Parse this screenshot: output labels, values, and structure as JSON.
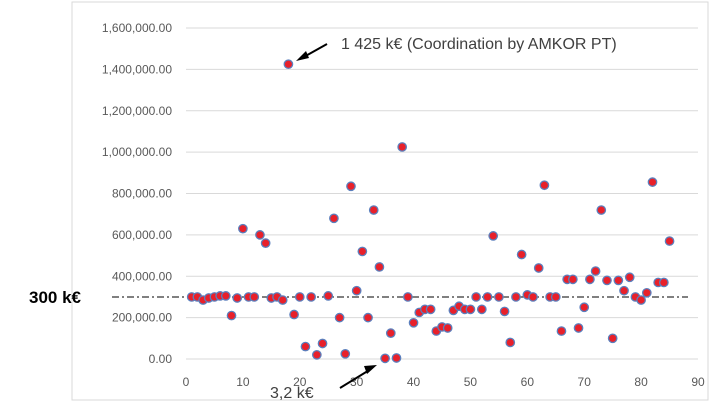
{
  "chart_data": {
    "type": "scatter",
    "title": "",
    "xlabel": "",
    "ylabel": "",
    "xlim": [
      0,
      90
    ],
    "ylim": [
      0,
      1600000
    ],
    "grid": "horizontal",
    "x_ticks": [
      "0",
      "10",
      "20",
      "30",
      "40",
      "50",
      "60",
      "70",
      "80",
      "90"
    ],
    "y_ticks": [
      "0.00",
      "200,000.00",
      "400,000.00",
      "600,000.00",
      "800,000.00",
      "1,000,000.00",
      "1,200,000.00",
      "1,400,000.00",
      "1,600,000.00"
    ],
    "colors": {
      "marker_fill": "#e8202a",
      "marker_edge": "#5b7fbd",
      "grid": "#d9d9d9",
      "reference_line": "#000000"
    },
    "reference_line": {
      "y": 300000,
      "label": "300 k€"
    },
    "annotations": [
      {
        "text": "1 425 k€ (Coordination by AMKOR PT)",
        "x": 18,
        "y": 1425000
      },
      {
        "text": "3,2 k€",
        "x": 35,
        "y": 3200
      }
    ],
    "points": [
      [
        1,
        300000
      ],
      [
        2,
        300000
      ],
      [
        3,
        285000
      ],
      [
        4,
        295000
      ],
      [
        5,
        300000
      ],
      [
        6,
        305000
      ],
      [
        7,
        305000
      ],
      [
        8,
        210000
      ],
      [
        9,
        295000
      ],
      [
        10,
        630000
      ],
      [
        11,
        300000
      ],
      [
        12,
        300000
      ],
      [
        13,
        600000
      ],
      [
        14,
        560000
      ],
      [
        15,
        295000
      ],
      [
        16,
        300000
      ],
      [
        17,
        285000
      ],
      [
        18,
        1425000
      ],
      [
        19,
        215000
      ],
      [
        20,
        300000
      ],
      [
        21,
        60000
      ],
      [
        22,
        300000
      ],
      [
        23,
        20000
      ],
      [
        24,
        75000
      ],
      [
        25,
        305000
      ],
      [
        26,
        680000
      ],
      [
        27,
        200000
      ],
      [
        28,
        25000
      ],
      [
        29,
        835000
      ],
      [
        30,
        330000
      ],
      [
        31,
        520000
      ],
      [
        32,
        200000
      ],
      [
        33,
        720000
      ],
      [
        34,
        445000
      ],
      [
        35,
        3200
      ],
      [
        36,
        125000
      ],
      [
        37,
        5000
      ],
      [
        38,
        1025000
      ],
      [
        39,
        300000
      ],
      [
        40,
        175000
      ],
      [
        41,
        225000
      ],
      [
        42,
        240000
      ],
      [
        43,
        240000
      ],
      [
        44,
        135000
      ],
      [
        45,
        155000
      ],
      [
        46,
        150000
      ],
      [
        47,
        235000
      ],
      [
        48,
        255000
      ],
      [
        49,
        240000
      ],
      [
        50,
        240000
      ],
      [
        51,
        300000
      ],
      [
        52,
        240000
      ],
      [
        53,
        300000
      ],
      [
        54,
        595000
      ],
      [
        55,
        300000
      ],
      [
        56,
        230000
      ],
      [
        57,
        80000
      ],
      [
        58,
        300000
      ],
      [
        59,
        505000
      ],
      [
        60,
        310000
      ],
      [
        61,
        300000
      ],
      [
        62,
        440000
      ],
      [
        63,
        840000
      ],
      [
        64,
        300000
      ],
      [
        65,
        300000
      ],
      [
        66,
        135000
      ],
      [
        67,
        385000
      ],
      [
        68,
        385000
      ],
      [
        69,
        150000
      ],
      [
        70,
        250000
      ],
      [
        71,
        385000
      ],
      [
        72,
        425000
      ],
      [
        73,
        720000
      ],
      [
        74,
        380000
      ],
      [
        75,
        100000
      ],
      [
        76,
        380000
      ],
      [
        77,
        330000
      ],
      [
        78,
        395000
      ],
      [
        79,
        300000
      ],
      [
        80,
        285000
      ],
      [
        81,
        320000
      ],
      [
        82,
        855000
      ],
      [
        83,
        370000
      ],
      [
        84,
        370000
      ],
      [
        85,
        570000
      ]
    ]
  }
}
